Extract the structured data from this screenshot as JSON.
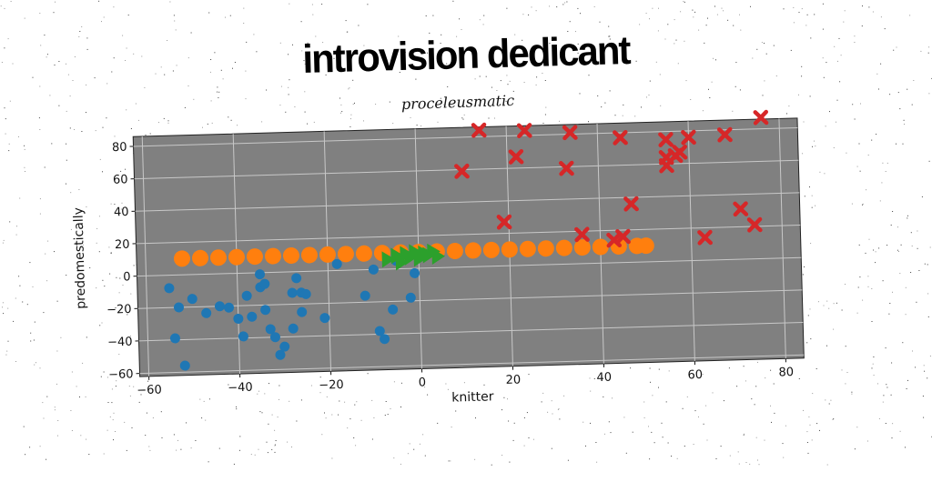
{
  "chart_data": {
    "type": "scatter",
    "title": "introvision dedicant",
    "subtitle": "proceleusmatic",
    "xlabel": "knitter",
    "ylabel": "predomestically",
    "xlim": [
      -62,
      84
    ],
    "ylim": [
      -62,
      86
    ],
    "xticks": [
      -60,
      -40,
      -20,
      0,
      20,
      40,
      60,
      80
    ],
    "yticks": [
      -60,
      -40,
      -20,
      0,
      20,
      40,
      60,
      80
    ],
    "grid": true,
    "background": "#808080",
    "series": [
      {
        "marker": "circle",
        "color": "#1f77b4",
        "points": [
          [
            -55,
            -8
          ],
          [
            -52,
            -56
          ],
          [
            -54,
            -39
          ],
          [
            -53,
            -20
          ],
          [
            -50,
            -15
          ],
          [
            -47,
            -24
          ],
          [
            -44,
            -20
          ],
          [
            -42,
            -21
          ],
          [
            -40,
            -28
          ],
          [
            -39,
            -39
          ],
          [
            -38,
            -14
          ],
          [
            -37,
            -27
          ],
          [
            -35,
            -9
          ],
          [
            -35,
            -1
          ],
          [
            -34,
            -7
          ],
          [
            -34,
            -23
          ],
          [
            -33,
            -35
          ],
          [
            -32,
            -40
          ],
          [
            -31,
            -51
          ],
          [
            -30,
            -46
          ],
          [
            -28,
            -35
          ],
          [
            -28,
            -13
          ],
          [
            -27,
            -4
          ],
          [
            -26,
            -13
          ],
          [
            -26,
            -25
          ],
          [
            -25,
            -14
          ],
          [
            -21,
            -29
          ],
          [
            -18,
            4
          ],
          [
            -12,
            -16
          ],
          [
            -10,
            0
          ],
          [
            -9,
            -38
          ],
          [
            -8,
            -43
          ],
          [
            -6,
            -25
          ],
          [
            -2,
            -18
          ],
          [
            -5,
            5
          ],
          [
            -1,
            -3
          ]
        ]
      },
      {
        "marker": "circle",
        "color": "#ff7f0e",
        "points": [
          [
            -52,
            10
          ],
          [
            -48,
            10
          ],
          [
            -44,
            10
          ],
          [
            -40,
            10
          ],
          [
            -36,
            10
          ],
          [
            -32,
            10
          ],
          [
            -28,
            10
          ],
          [
            -24,
            10
          ],
          [
            -20,
            10
          ],
          [
            -16,
            10
          ],
          [
            -12,
            10
          ],
          [
            -8,
            10
          ],
          [
            -4,
            10
          ],
          [
            0,
            10
          ],
          [
            4,
            10
          ],
          [
            8,
            10
          ],
          [
            12,
            10
          ],
          [
            16,
            10
          ],
          [
            20,
            10
          ],
          [
            24,
            10
          ],
          [
            28,
            10
          ],
          [
            32,
            10
          ],
          [
            36,
            10
          ],
          [
            40,
            10
          ],
          [
            44,
            10
          ],
          [
            48,
            10
          ],
          [
            50,
            10
          ]
        ]
      },
      {
        "marker": "triangle",
        "color": "#2ca02c",
        "points": [
          [
            -7,
            6
          ],
          [
            -5,
            8
          ],
          [
            -4,
            4
          ],
          [
            -3,
            9
          ],
          [
            -2,
            7
          ],
          [
            -1,
            10
          ],
          [
            0,
            6
          ],
          [
            1,
            9
          ],
          [
            2,
            8
          ],
          [
            3,
            10
          ],
          [
            4,
            7
          ]
        ]
      },
      {
        "marker": "x",
        "color": "#d62728",
        "points": [
          [
            10,
            59
          ],
          [
            14,
            84
          ],
          [
            19,
            27
          ],
          [
            22,
            67
          ],
          [
            24,
            83
          ],
          [
            33,
            59
          ],
          [
            34,
            81
          ],
          [
            36,
            18
          ],
          [
            43,
            14
          ],
          [
            45,
            77
          ],
          [
            45,
            16
          ],
          [
            47,
            36
          ],
          [
            55,
            75
          ],
          [
            55,
            64
          ],
          [
            55,
            59
          ],
          [
            57,
            65
          ],
          [
            58,
            67
          ],
          [
            60,
            76
          ],
          [
            63,
            14
          ],
          [
            68,
            77
          ],
          [
            71,
            31
          ],
          [
            74,
            21
          ],
          [
            76,
            87
          ]
        ]
      }
    ]
  }
}
